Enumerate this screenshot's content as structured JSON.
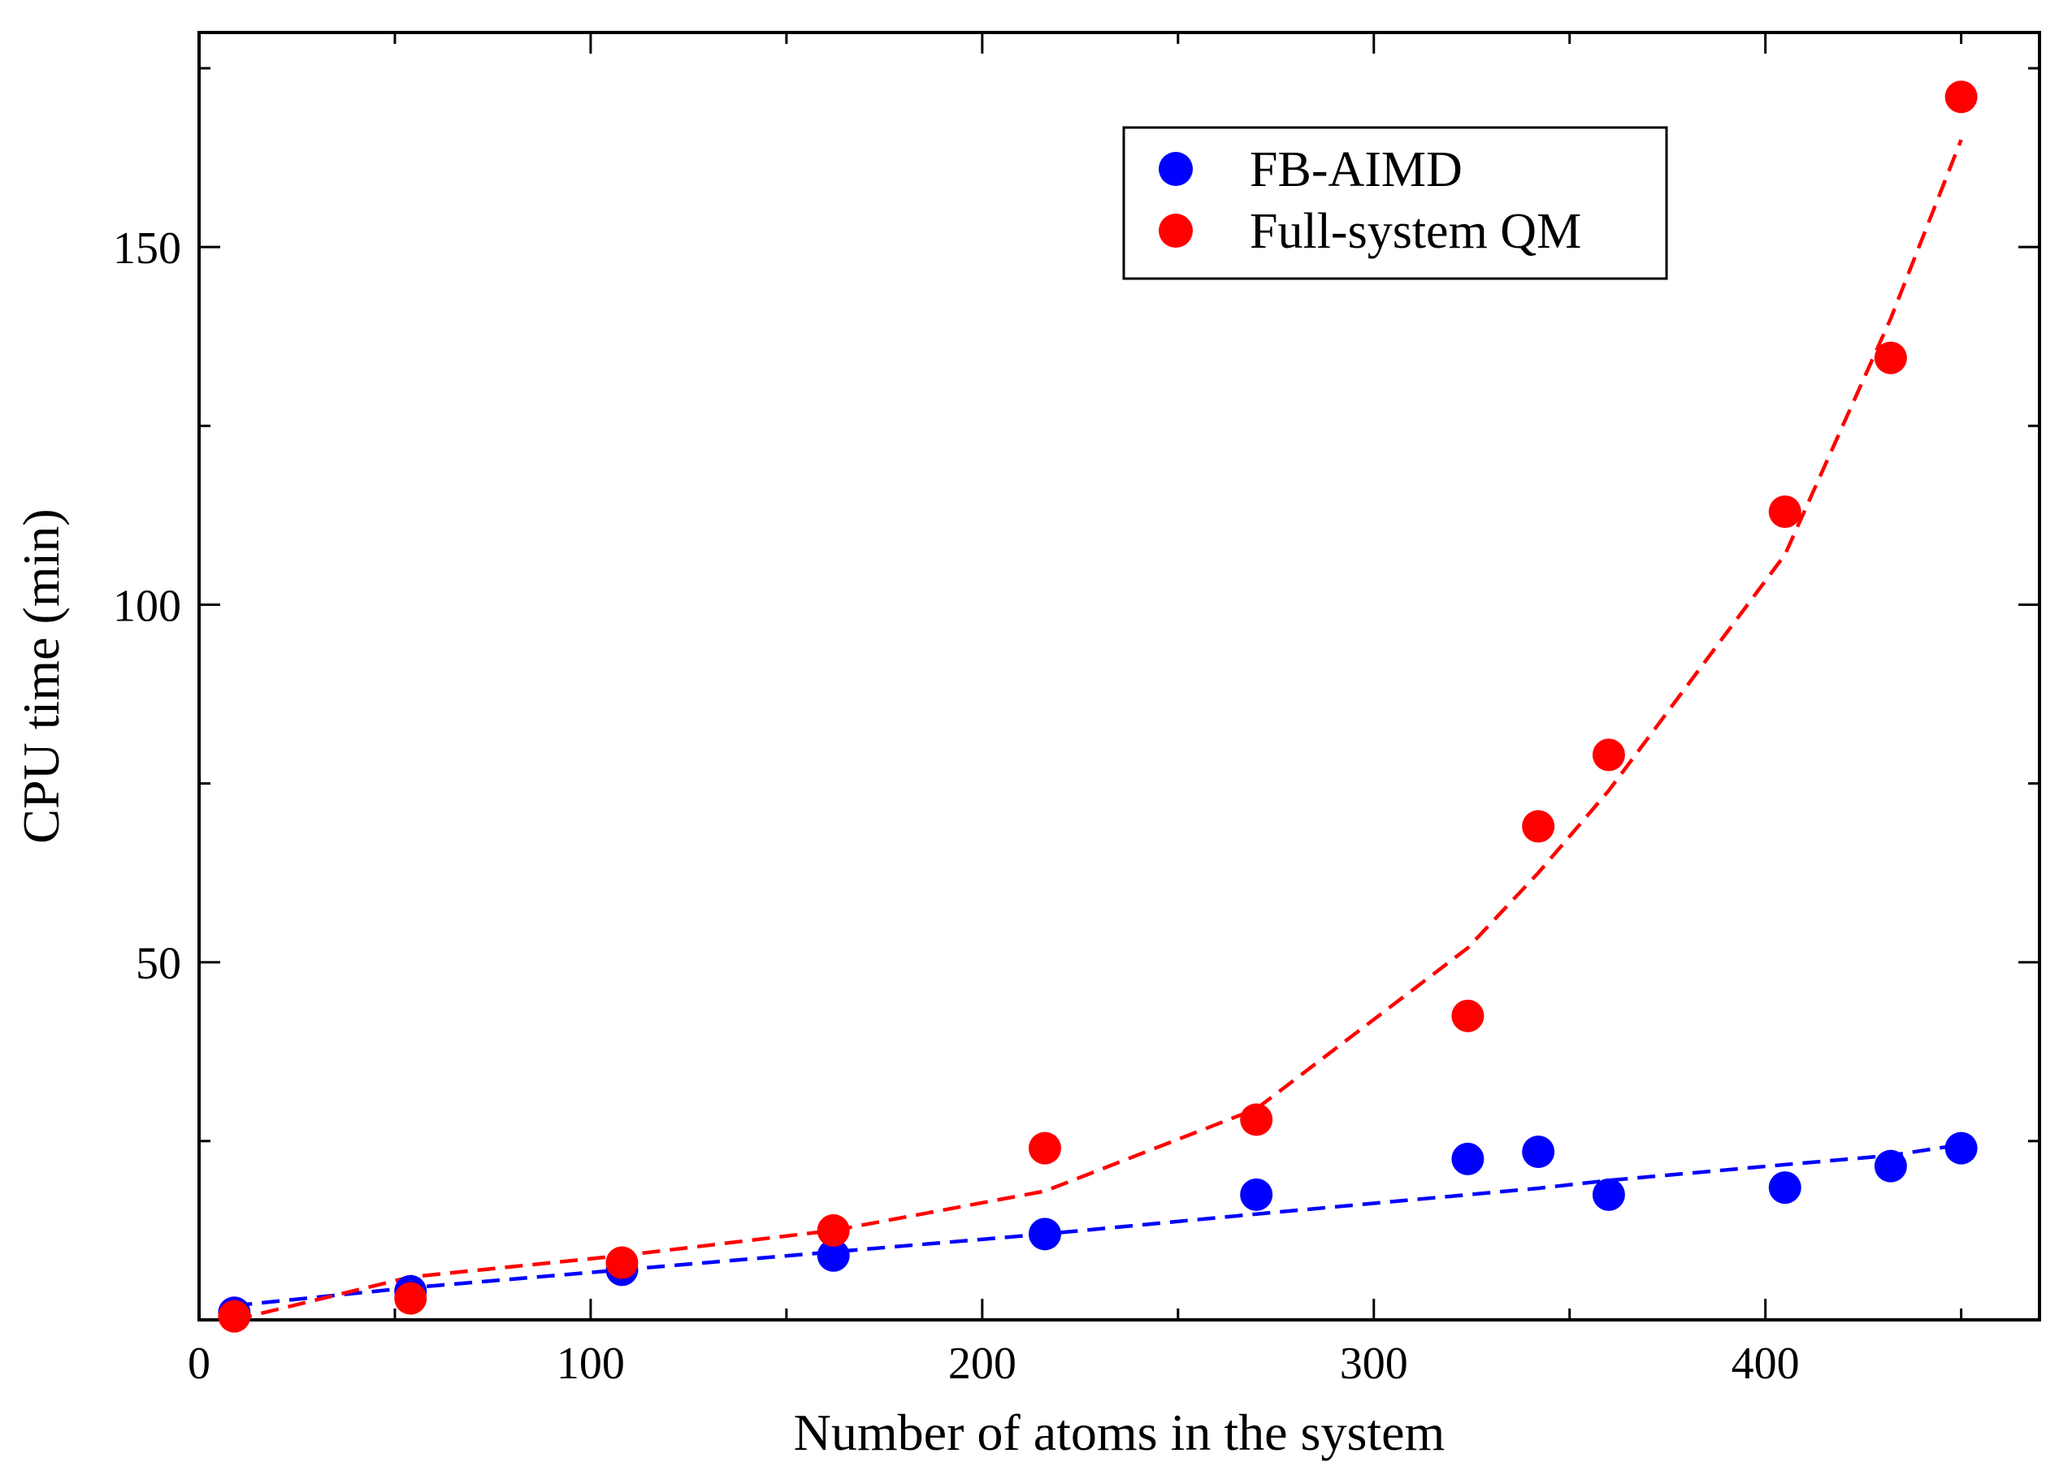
{
  "chart_data": {
    "type": "scatter",
    "title": "",
    "xlabel": "Number of atoms in the system",
    "ylabel": "CPU time (min)",
    "xlim": [
      0,
      470
    ],
    "ylim": [
      0,
      180
    ],
    "x_major_ticks": [
      0,
      100,
      200,
      300,
      400
    ],
    "x_tick_labels": [
      "0",
      "100",
      "200",
      "300",
      "400"
    ],
    "x_minor_ticks": [
      50,
      150,
      250,
      350,
      450
    ],
    "y_major_ticks": [
      50,
      100,
      150
    ],
    "y_tick_labels": [
      "50",
      "100",
      "150"
    ],
    "y_minor_ticks": [
      25,
      75,
      125,
      175
    ],
    "grid": false,
    "legend_position": "top-right",
    "series": [
      {
        "name": "FB-AIMD",
        "color": "#0000ff",
        "x": [
          9,
          54,
          108,
          162,
          216,
          270,
          324,
          342,
          360,
          405,
          432,
          450
        ],
        "y": [
          1,
          4,
          7,
          9,
          12,
          17.5,
          22.5,
          23.5,
          17.5,
          18.5,
          21.5,
          24
        ],
        "fit_x": [
          9,
          54,
          108,
          162,
          216,
          270,
          324,
          342,
          360,
          405,
          432,
          450
        ],
        "fit_y": [
          2,
          4.5,
          7,
          9.5,
          12,
          14.8,
          17.5,
          18.4,
          19.5,
          21.7,
          23,
          24.5
        ]
      },
      {
        "name": "Full-system QM",
        "color": "#ff0000",
        "x": [
          9,
          54,
          108,
          162,
          216,
          270,
          324,
          342,
          360,
          405,
          432,
          450
        ],
        "y": [
          0.5,
          3,
          8,
          12.5,
          24,
          28,
          42.5,
          69,
          79,
          113,
          134.5,
          171
        ],
        "fit_x": [
          9,
          54,
          108,
          162,
          216,
          270,
          324,
          342,
          360,
          405,
          432,
          450
        ],
        "fit_y": [
          0,
          6,
          9,
          12.5,
          18,
          29.5,
          52,
          62.5,
          74,
          107,
          140,
          165
        ]
      }
    ]
  }
}
